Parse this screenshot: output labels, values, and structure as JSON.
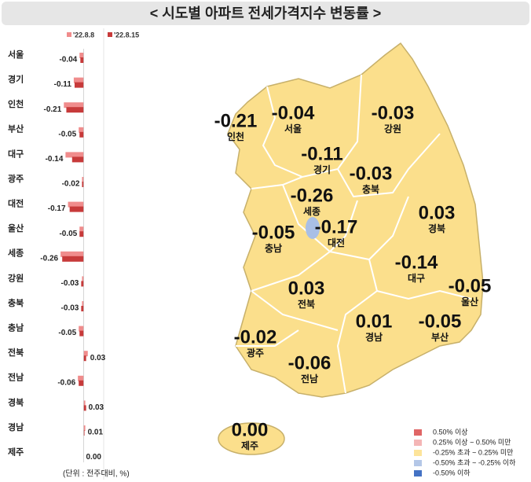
{
  "title": "< 시도별 아파트 전세가격지수 변동률 >",
  "chart_data": {
    "type": "bar",
    "orientation": "horizontal",
    "categories": [
      "서울",
      "경기",
      "인천",
      "부산",
      "대구",
      "광주",
      "대전",
      "울산",
      "세종",
      "강원",
      "충북",
      "충남",
      "전북",
      "전남",
      "경북",
      "경남",
      "제주"
    ],
    "series": [
      {
        "name": "'22.8.8",
        "color": "#f08c8c",
        "values": [
          -0.05,
          -0.12,
          -0.24,
          -0.06,
          -0.22,
          -0.02,
          -0.19,
          -0.05,
          -0.28,
          -0.02,
          -0.02,
          -0.06,
          0.05,
          -0.07,
          0.02,
          0.02,
          0.0
        ]
      },
      {
        "name": "'22.8.15",
        "color": "#c73a3a",
        "values": [
          -0.04,
          -0.11,
          -0.21,
          -0.05,
          -0.14,
          -0.02,
          -0.17,
          -0.05,
          -0.26,
          -0.03,
          -0.03,
          -0.05,
          0.03,
          -0.06,
          0.03,
          0.01,
          0.0
        ],
        "value_labels": [
          "-0.04",
          "-0.11",
          "-0.21",
          "-0.05",
          "-0.14",
          "-0.02",
          "-0.17",
          "-0.05",
          "-0.26",
          "-0.03",
          "-0.03",
          "-0.05",
          "0.03",
          "-0.06",
          "0.03",
          "0.01",
          "0.00"
        ]
      }
    ],
    "xlim": [
      -0.3,
      0.1
    ],
    "unit_note": "(단위 : 전주대비, %)"
  },
  "map_legend": {
    "items": [
      {
        "label": "0.50% 이상",
        "color": "#e06666"
      },
      {
        "label": "0.25% 이상 ~ 0.50% 미만",
        "color": "#f4b6b6"
      },
      {
        "label": "-0.25% 초과 ~ 0.25% 미만",
        "color": "#fde49a"
      },
      {
        "label": "-0.50% 초과 ~ -0.25% 이하",
        "color": "#b4c7e7"
      },
      {
        "label": "-0.50% 이하",
        "color": "#4472c4"
      }
    ]
  }
}
